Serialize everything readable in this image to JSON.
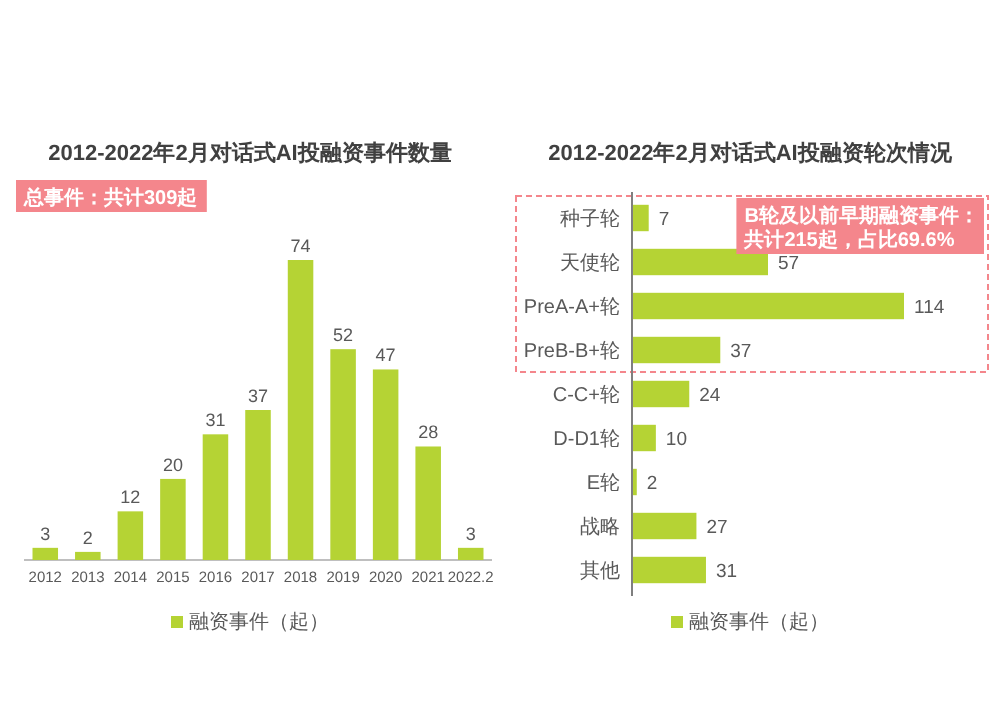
{
  "chart_data": [
    {
      "type": "bar",
      "title": "2012-2022年2月对话式AI投融资事件数量",
      "categories": [
        "2012",
        "2013",
        "2014",
        "2015",
        "2016",
        "2017",
        "2018",
        "2019",
        "2020",
        "2021",
        "2022.2"
      ],
      "series": [
        {
          "name": "融资事件（起）",
          "color": "#b5d334",
          "values": [
            3,
            2,
            12,
            20,
            31,
            37,
            74,
            52,
            47,
            28,
            3
          ]
        }
      ],
      "data_labels": true,
      "legend": "bottom",
      "tick_labels": "x",
      "annotations": [
        "总事件：共计309起"
      ]
    },
    {
      "type": "bar",
      "orientation": "horizontal",
      "title": "2012-2022年2月对话式AI投融资轮次情况",
      "categories": [
        "种子轮",
        "天使轮",
        "PreA-A+轮",
        "PreB-B+轮",
        "C-C+轮",
        "D-D1轮",
        "E轮",
        "战略",
        "其他"
      ],
      "series": [
        {
          "name": "融资事件（起）",
          "color": "#b5d334",
          "values": [
            7,
            57,
            114,
            37,
            24,
            10,
            2,
            27,
            31
          ]
        }
      ],
      "data_labels": true,
      "legend": "bottom",
      "tick_labels": "y",
      "annotations": [
        "B轮及以前早期融资事件：",
        "共计215起，占比69.6%"
      ]
    }
  ]
}
